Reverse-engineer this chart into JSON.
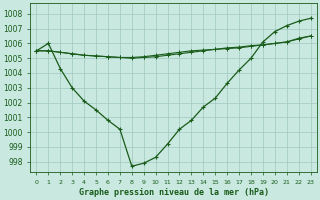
{
  "title": "Graphe pression niveau de la mer (hPa)",
  "bg_color": "#c8e8e0",
  "grid_color": "#a0c8c0",
  "line_color": "#1a5c1a",
  "x_labels": [
    "0",
    "1",
    "2",
    "3",
    "4",
    "5",
    "6",
    "7",
    "8",
    "9",
    "10",
    "11",
    "12",
    "13",
    "14",
    "15",
    "16",
    "17",
    "18",
    "19",
    "20",
    "21",
    "22",
    "23"
  ],
  "ylim": [
    997.3,
    1008.7
  ],
  "yticks": [
    998,
    999,
    1000,
    1001,
    1002,
    1003,
    1004,
    1005,
    1006,
    1007,
    1008
  ],
  "series1": [
    1005.5,
    1006.0,
    1004.3,
    1003.0,
    1002.1,
    1001.5,
    1000.8,
    1000.2,
    997.7,
    997.9,
    998.3,
    999.2,
    1000.2,
    1000.8,
    1001.7,
    1002.3,
    1003.3,
    1004.2,
    1005.0,
    1006.1,
    1006.8,
    1007.2,
    1007.5,
    1007.7
  ],
  "series2": [
    1005.5,
    1005.5,
    1005.4,
    1005.3,
    1005.2,
    1005.15,
    1005.1,
    1005.05,
    1005.0,
    1005.05,
    1005.1,
    1005.2,
    1005.3,
    1005.4,
    1005.5,
    1005.6,
    1005.65,
    1005.7,
    1005.8,
    1005.9,
    1006.0,
    1006.1,
    1006.35,
    1006.5
  ],
  "series3": [
    1005.5,
    1005.5,
    1005.4,
    1005.3,
    1005.2,
    1005.15,
    1005.1,
    1005.05,
    1005.05,
    1005.1,
    1005.2,
    1005.3,
    1005.4,
    1005.5,
    1005.55,
    1005.6,
    1005.7,
    1005.75,
    1005.85,
    1005.9,
    1006.0,
    1006.1,
    1006.3,
    1006.5
  ],
  "figsize": [
    3.2,
    2.0
  ],
  "dpi": 100
}
